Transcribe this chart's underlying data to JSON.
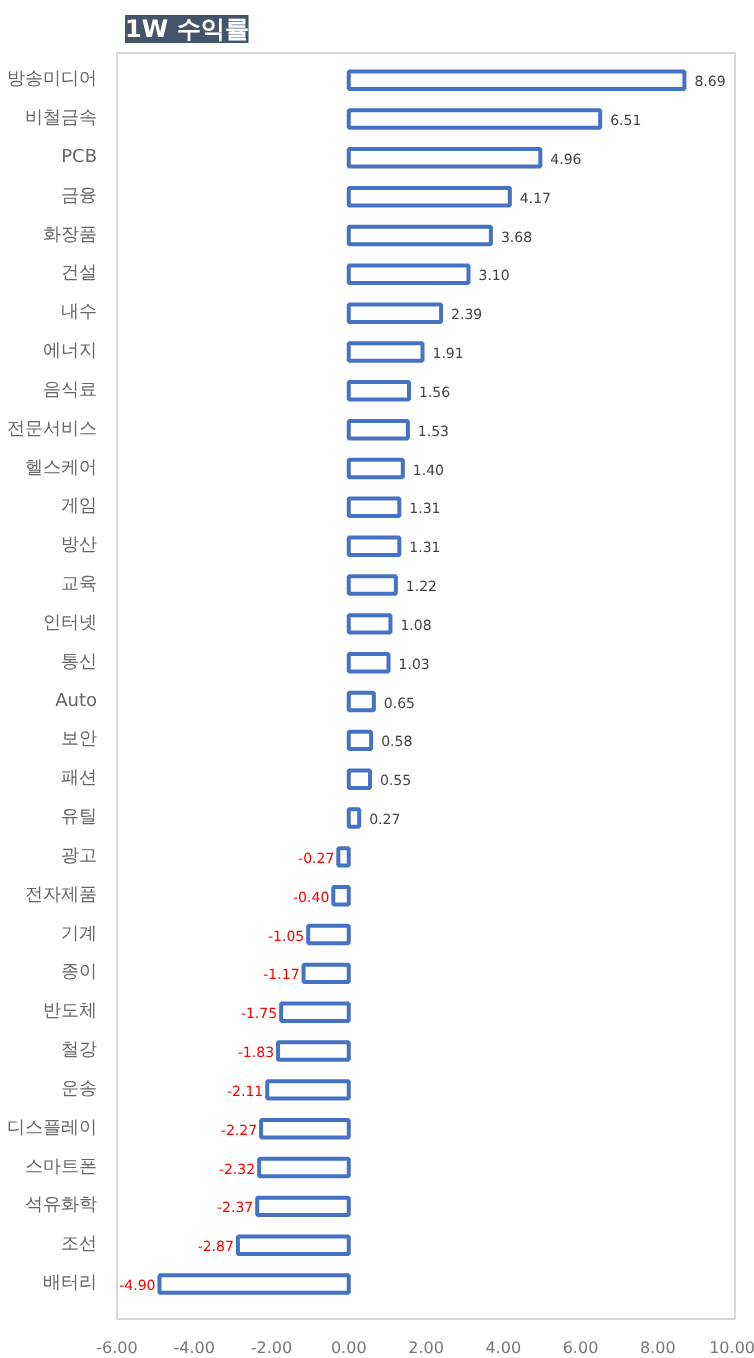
{
  "chart_data": {
    "type": "bar",
    "orientation": "horizontal",
    "title": "1W 수익률",
    "categories": [
      "방송미디어",
      "비철금속",
      "PCB",
      "금융",
      "화장품",
      "건설",
      "내수",
      "에너지",
      "음식료",
      "전문서비스",
      "헬스케어",
      "게임",
      "방산",
      "교육",
      "인터넷",
      "통신",
      "Auto",
      "보안",
      "패션",
      "유틸",
      "광고",
      "전자제품",
      "기계",
      "종이",
      "반도체",
      "철강",
      "운송",
      "디스플레이",
      "스마트폰",
      "석유화학",
      "조선",
      "배터리"
    ],
    "values": [
      8.69,
      6.51,
      4.96,
      4.17,
      3.68,
      3.1,
      2.39,
      1.91,
      1.56,
      1.53,
      1.4,
      1.31,
      1.31,
      1.22,
      1.08,
      1.03,
      0.65,
      0.58,
      0.55,
      0.27,
      -0.27,
      -0.4,
      -1.05,
      -1.17,
      -1.75,
      -1.83,
      -2.11,
      -2.27,
      -2.32,
      -2.37,
      -2.87,
      -4.9
    ],
    "value_labels": [
      "8.69",
      "6.51",
      "4.96",
      "4.17",
      "3.68",
      "3.10",
      "2.39",
      "1.91",
      "1.56",
      "1.53",
      "1.40",
      "1.31",
      "1.31",
      "1.22",
      "1.08",
      "1.03",
      "0.65",
      "0.58",
      "0.55",
      "0.27",
      "-0.27",
      "-0.40",
      "-1.05",
      "-1.17",
      "-1.75",
      "-1.83",
      "-2.11",
      "-2.27",
      "-2.32",
      "-2.37",
      "-2.87",
      "-4.90"
    ],
    "color": "#4472c4",
    "xlim": [
      -6,
      10
    ],
    "xticks": [
      {
        "value": -6,
        "label": "-6.00"
      },
      {
        "value": -4,
        "label": "-4.00"
      },
      {
        "value": -2,
        "label": "-2.00"
      },
      {
        "value": 0,
        "label": "0.00"
      },
      {
        "value": 2,
        "label": "2.00"
      },
      {
        "value": 4,
        "label": "4.00"
      },
      {
        "value": 6,
        "label": "6.00"
      },
      {
        "value": 8,
        "label": "8.00"
      },
      {
        "value": 10,
        "label": "10.00"
      }
    ],
    "grid": false
  }
}
